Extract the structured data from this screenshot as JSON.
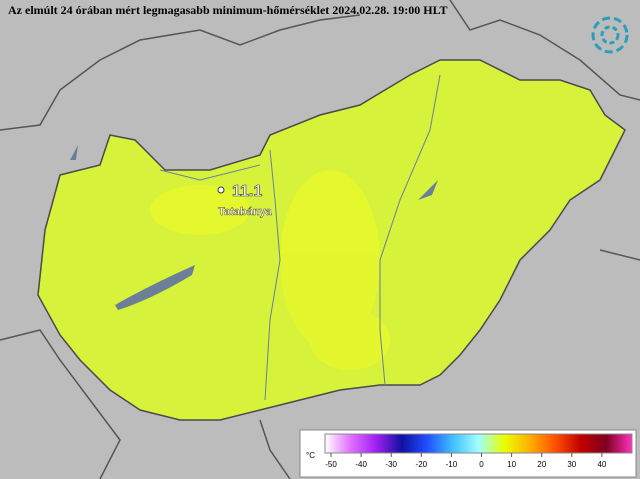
{
  "title": "Az elmúlt 24 órában mért legmagasabb minimum-hőmérséklet 2024.02.28. 19:00 HLT",
  "station": {
    "value": "11.1",
    "name": "Tatabánya"
  },
  "colorbar": {
    "unit": "°C",
    "range": [
      -52,
      50
    ],
    "ticks": [
      -50,
      -40,
      -30,
      -20,
      -10,
      0,
      10,
      20,
      30,
      40
    ],
    "colors": [
      "#ffffff",
      "#e070ff",
      "#a020f0",
      "#1010a0",
      "#2050ff",
      "#40c0ff",
      "#a0ffff",
      "#e8ff00",
      "#ffb000",
      "#ff5000",
      "#c00000",
      "#800020",
      "#ff30c0"
    ]
  }
}
